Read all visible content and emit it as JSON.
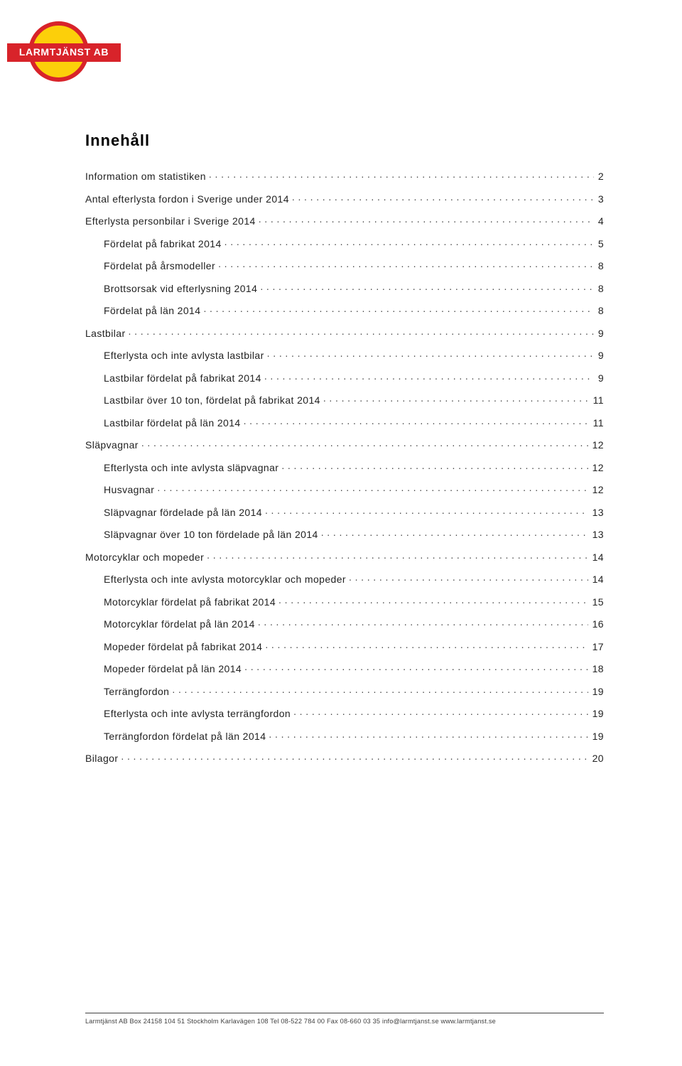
{
  "logo": {
    "text": "LARMTJÄNST AB"
  },
  "title": "Innehåll",
  "toc": [
    {
      "label": "Information om statistiken",
      "page": "2",
      "indent": 0
    },
    {
      "label": "Antal efterlysta fordon i Sverige under 2014",
      "page": "3",
      "indent": 0
    },
    {
      "label": "Efterlysta personbilar i Sverige 2014",
      "page": "4",
      "indent": 0
    },
    {
      "label": "Fördelat på fabrikat 2014",
      "page": "5",
      "indent": 1
    },
    {
      "label": "Fördelat på årsmodeller",
      "page": "8",
      "indent": 1
    },
    {
      "label": "Brottsorsak vid efterlysning 2014",
      "page": "8",
      "indent": 1
    },
    {
      "label": "Fördelat på län 2014",
      "page": "8",
      "indent": 1
    },
    {
      "label": "Lastbilar",
      "page": "9",
      "indent": 0
    },
    {
      "label": "Efterlysta och inte avlysta lastbilar",
      "page": "9",
      "indent": 1
    },
    {
      "label": "Lastbilar fördelat på fabrikat 2014",
      "page": "9",
      "indent": 1
    },
    {
      "label": "Lastbilar över 10 ton, fördelat på fabrikat 2014",
      "page": "11",
      "indent": 1
    },
    {
      "label": "Lastbilar fördelat på län 2014",
      "page": "11",
      "indent": 1
    },
    {
      "label": "Släpvagnar",
      "page": "12",
      "indent": 0
    },
    {
      "label": "Efterlysta och inte avlysta släpvagnar",
      "page": "12",
      "indent": 1
    },
    {
      "label": "Husvagnar",
      "page": "12",
      "indent": 1
    },
    {
      "label": "Släpvagnar fördelade på län 2014",
      "page": "13",
      "indent": 1
    },
    {
      "label": "Släpvagnar över 10 ton fördelade på län 2014",
      "page": "13",
      "indent": 1
    },
    {
      "label": "Motorcyklar och mopeder",
      "page": "14",
      "indent": 0
    },
    {
      "label": "Efterlysta och inte avlysta motorcyklar och mopeder",
      "page": "14",
      "indent": 1
    },
    {
      "label": "Motorcyklar fördelat på fabrikat 2014",
      "page": "15",
      "indent": 1
    },
    {
      "label": "Motorcyklar fördelat på län 2014",
      "page": "16",
      "indent": 1
    },
    {
      "label": "Mopeder fördelat på fabrikat 2014",
      "page": "17",
      "indent": 1
    },
    {
      "label": "Mopeder fördelat på län 2014",
      "page": "18",
      "indent": 1
    },
    {
      "label": "Terrängfordon",
      "page": "19",
      "indent": 1
    },
    {
      "label": "Efterlysta och inte avlysta terrängfordon",
      "page": "19",
      "indent": 1
    },
    {
      "label": "Terrängfordon fördelat på län 2014",
      "page": "19",
      "indent": 1
    },
    {
      "label": "Bilagor",
      "page": "20",
      "indent": 0
    }
  ],
  "footer": "Larmtjänst AB  Box 24158  104 51 Stockholm  Karlavägen 108  Tel 08-522 784 00  Fax 08-660 03 35  info@larmtjanst.se  www.larmtjanst.se"
}
